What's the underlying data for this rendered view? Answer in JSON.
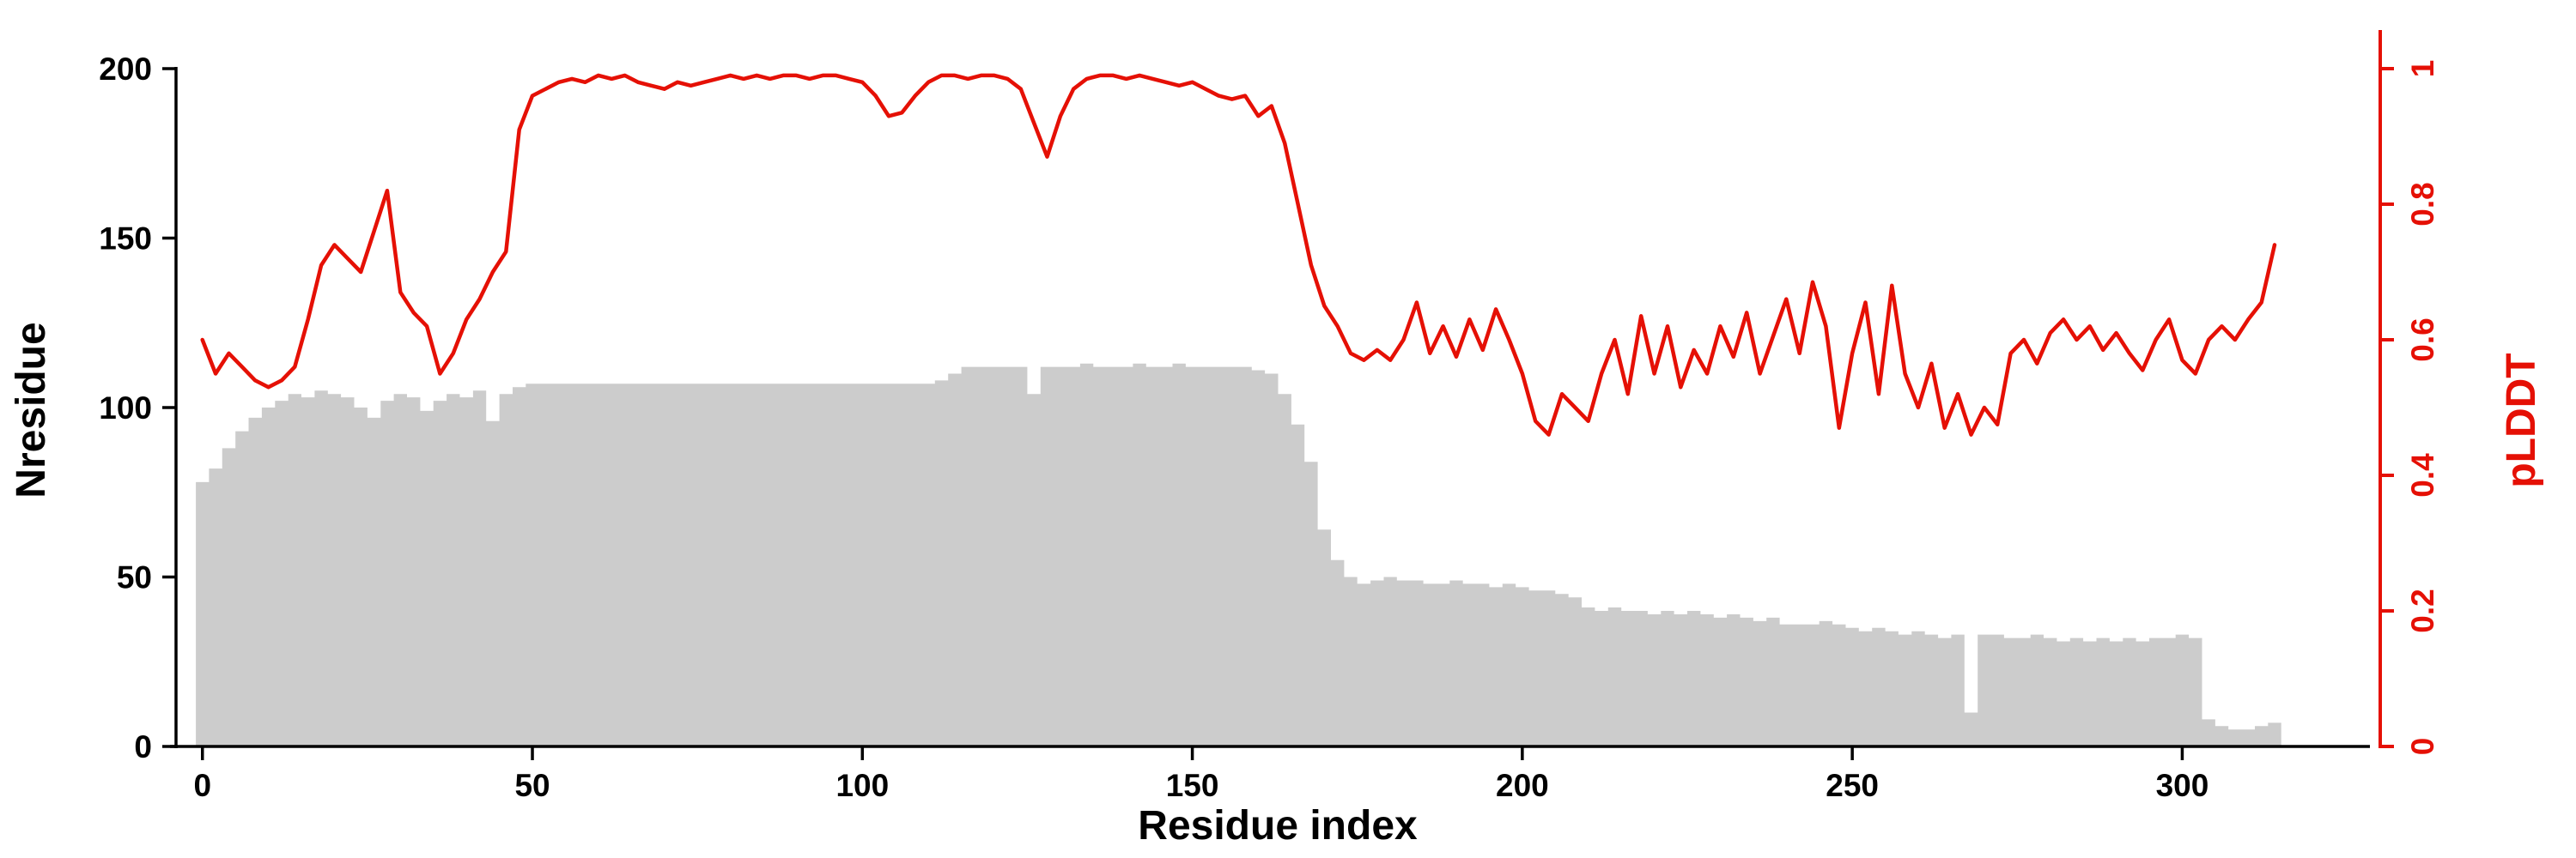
{
  "figure": {
    "background": "#ffffff",
    "x_axis": {
      "label": "Residue index",
      "ticks": [
        0,
        50,
        100,
        150,
        200,
        250,
        300
      ],
      "range": [
        -4,
        330
      ]
    },
    "y_left": {
      "label": "Nresidue",
      "ticks": [
        0,
        50,
        100,
        150,
        200
      ],
      "range": [
        0,
        200
      ],
      "color": "#000000"
    },
    "y_right": {
      "label": "pLDDT",
      "ticks": [
        0,
        0.2,
        0.4,
        0.6,
        0.8,
        1
      ],
      "range": [
        0,
        1
      ],
      "color": "#e51005"
    }
  },
  "chart_data": {
    "type": "bar+line",
    "title": "",
    "xlabel": "Residue index",
    "ylabel_left": "Nresidue",
    "ylabel_right": "pLDDT",
    "x_range": [
      0,
      314
    ],
    "grid": false,
    "legend": "none",
    "x": [
      0,
      2,
      4,
      6,
      8,
      10,
      12,
      14,
      16,
      18,
      20,
      22,
      24,
      26,
      28,
      30,
      32,
      34,
      36,
      38,
      40,
      42,
      44,
      46,
      48,
      50,
      52,
      54,
      56,
      58,
      60,
      62,
      64,
      66,
      68,
      70,
      72,
      74,
      76,
      78,
      80,
      82,
      84,
      86,
      88,
      90,
      92,
      94,
      96,
      98,
      100,
      102,
      104,
      106,
      108,
      110,
      112,
      114,
      116,
      118,
      120,
      122,
      124,
      126,
      128,
      130,
      132,
      134,
      136,
      138,
      140,
      142,
      144,
      146,
      148,
      150,
      152,
      154,
      156,
      158,
      160,
      162,
      164,
      166,
      168,
      170,
      172,
      174,
      176,
      178,
      180,
      182,
      184,
      186,
      188,
      190,
      192,
      194,
      196,
      198,
      200,
      202,
      204,
      206,
      208,
      210,
      212,
      214,
      216,
      218,
      220,
      222,
      224,
      226,
      228,
      230,
      232,
      234,
      236,
      238,
      240,
      242,
      244,
      246,
      248,
      250,
      252,
      254,
      256,
      258,
      260,
      262,
      264,
      266,
      268,
      270,
      272,
      274,
      276,
      278,
      280,
      282,
      284,
      286,
      288,
      290,
      292,
      294,
      296,
      298,
      300,
      302,
      304,
      306,
      308,
      310,
      312,
      314
    ],
    "series": [
      {
        "name": "Nresidue",
        "type": "bar",
        "axis": "left",
        "color": "#cccccc",
        "values": [
          78,
          82,
          88,
          93,
          97,
          100,
          102,
          104,
          103,
          105,
          104,
          103,
          100,
          97,
          102,
          104,
          103,
          99,
          102,
          104,
          103,
          105,
          96,
          104,
          106,
          107,
          107,
          107,
          107,
          107,
          107,
          107,
          107,
          107,
          107,
          107,
          107,
          107,
          107,
          107,
          107,
          107,
          107,
          107,
          107,
          107,
          107,
          107,
          107,
          107,
          107,
          107,
          107,
          107,
          107,
          107,
          108,
          110,
          112,
          112,
          112,
          112,
          112,
          104,
          112,
          112,
          112,
          113,
          112,
          112,
          112,
          113,
          112,
          112,
          113,
          112,
          112,
          112,
          112,
          112,
          111,
          110,
          104,
          95,
          84,
          64,
          55,
          50,
          48,
          49,
          50,
          49,
          49,
          48,
          48,
          49,
          48,
          48,
          47,
          48,
          47,
          46,
          46,
          45,
          44,
          41,
          40,
          41,
          40,
          40,
          39,
          40,
          39,
          40,
          39,
          38,
          39,
          38,
          37,
          38,
          36,
          36,
          36,
          37,
          36,
          35,
          34,
          35,
          34,
          33,
          34,
          33,
          32,
          33,
          10,
          33,
          33,
          32,
          32,
          33,
          32,
          31,
          32,
          31,
          32,
          31,
          32,
          31,
          32,
          32,
          33,
          32,
          8,
          6,
          5,
          5,
          6,
          7
        ]
      },
      {
        "name": "pLDDT",
        "type": "line",
        "axis": "right",
        "color": "#e51005",
        "values": [
          0.6,
          0.55,
          0.58,
          0.56,
          0.54,
          0.53,
          0.54,
          0.56,
          0.63,
          0.71,
          0.74,
          0.72,
          0.7,
          0.76,
          0.82,
          0.67,
          0.64,
          0.62,
          0.55,
          0.58,
          0.63,
          0.66,
          0.7,
          0.73,
          0.91,
          0.96,
          0.97,
          0.98,
          0.985,
          0.98,
          0.99,
          0.985,
          0.99,
          0.98,
          0.975,
          0.97,
          0.98,
          0.975,
          0.98,
          0.985,
          0.99,
          0.985,
          0.99,
          0.985,
          0.99,
          0.99,
          0.985,
          0.99,
          0.99,
          0.985,
          0.98,
          0.96,
          0.93,
          0.935,
          0.96,
          0.98,
          0.99,
          0.99,
          0.985,
          0.99,
          0.99,
          0.985,
          0.97,
          0.92,
          0.87,
          0.93,
          0.97,
          0.985,
          0.99,
          0.99,
          0.985,
          0.99,
          0.985,
          0.98,
          0.975,
          0.98,
          0.97,
          0.96,
          0.955,
          0.96,
          0.93,
          0.945,
          0.89,
          0.8,
          0.71,
          0.65,
          0.62,
          0.58,
          0.57,
          0.585,
          0.57,
          0.6,
          0.655,
          0.58,
          0.62,
          0.575,
          0.63,
          0.585,
          0.645,
          0.6,
          0.55,
          0.48,
          0.46,
          0.52,
          0.5,
          0.48,
          0.55,
          0.6,
          0.52,
          0.635,
          0.55,
          0.62,
          0.53,
          0.585,
          0.55,
          0.62,
          0.575,
          0.64,
          0.55,
          0.605,
          0.66,
          0.58,
          0.685,
          0.62,
          0.47,
          0.58,
          0.655,
          0.52,
          0.68,
          0.55,
          0.5,
          0.565,
          0.47,
          0.52,
          0.46,
          0.5,
          0.475,
          0.58,
          0.6,
          0.565,
          0.61,
          0.63,
          0.6,
          0.62,
          0.585,
          0.61,
          0.58,
          0.555,
          0.6,
          0.63,
          0.57,
          0.55,
          0.6,
          0.62,
          0.6,
          0.63,
          0.655,
          0.74
        ]
      }
    ]
  }
}
